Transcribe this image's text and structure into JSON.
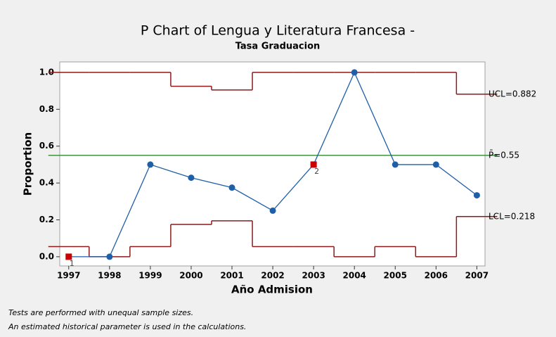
{
  "chart_data": {
    "type": "pchart",
    "title": "P Chart of Lengua y Literatura Francesa -",
    "subtitle": "Tasa Graduacion",
    "xlabel": "Año Admision",
    "ylabel": "Proportion",
    "x": [
      1997,
      1998,
      1999,
      2000,
      2001,
      2002,
      2003,
      2004,
      2005,
      2006,
      2007
    ],
    "values": [
      0,
      0,
      0.5,
      0.4286,
      0.375,
      0.25,
      0.5,
      1.0,
      0.5,
      0.5,
      0.3333
    ],
    "test_labels": [
      "1",
      null,
      null,
      null,
      null,
      null,
      "2",
      null,
      null,
      null,
      null
    ],
    "ucl": [
      1.0,
      1.0,
      1.0,
      0.925,
      0.905,
      1.0,
      1.0,
      1.0,
      1.0,
      1.0,
      0.882
    ],
    "lcl": [
      0.055,
      0,
      0.055,
      0.175,
      0.195,
      0.055,
      0.055,
      0,
      0.055,
      0,
      0.218
    ],
    "center": 0.55,
    "ucl_label": "UCL=0.882",
    "center_label": "P̄=0.55",
    "lcl_label": "LCL=0.218",
    "color": "#1f5fa8",
    "flag_color": "#cc0000",
    "limit_color": "#8b1a1a",
    "center_color": "#2e8b2e",
    "xlim": [
      1996.78,
      2007.2
    ],
    "xticks": [
      1997,
      1998,
      1999,
      2000,
      2001,
      2002,
      2003,
      2004,
      2005,
      2006,
      2007
    ],
    "ylim": [
      -0.05,
      1.057
    ],
    "yticks": [
      {
        "value": 0,
        "label": "0.0"
      },
      {
        "value": 0.2,
        "label": "0.2"
      },
      {
        "value": 0.4,
        "label": "0.4"
      },
      {
        "value": 0.6,
        "label": "0.6"
      },
      {
        "value": 0.8,
        "label": "0.8"
      },
      {
        "value": 1.0,
        "label": "1.0"
      }
    ],
    "notes": [
      "Tests are performed with unequal sample sizes.",
      "An estimated historical parameter is used in the calculations."
    ]
  }
}
